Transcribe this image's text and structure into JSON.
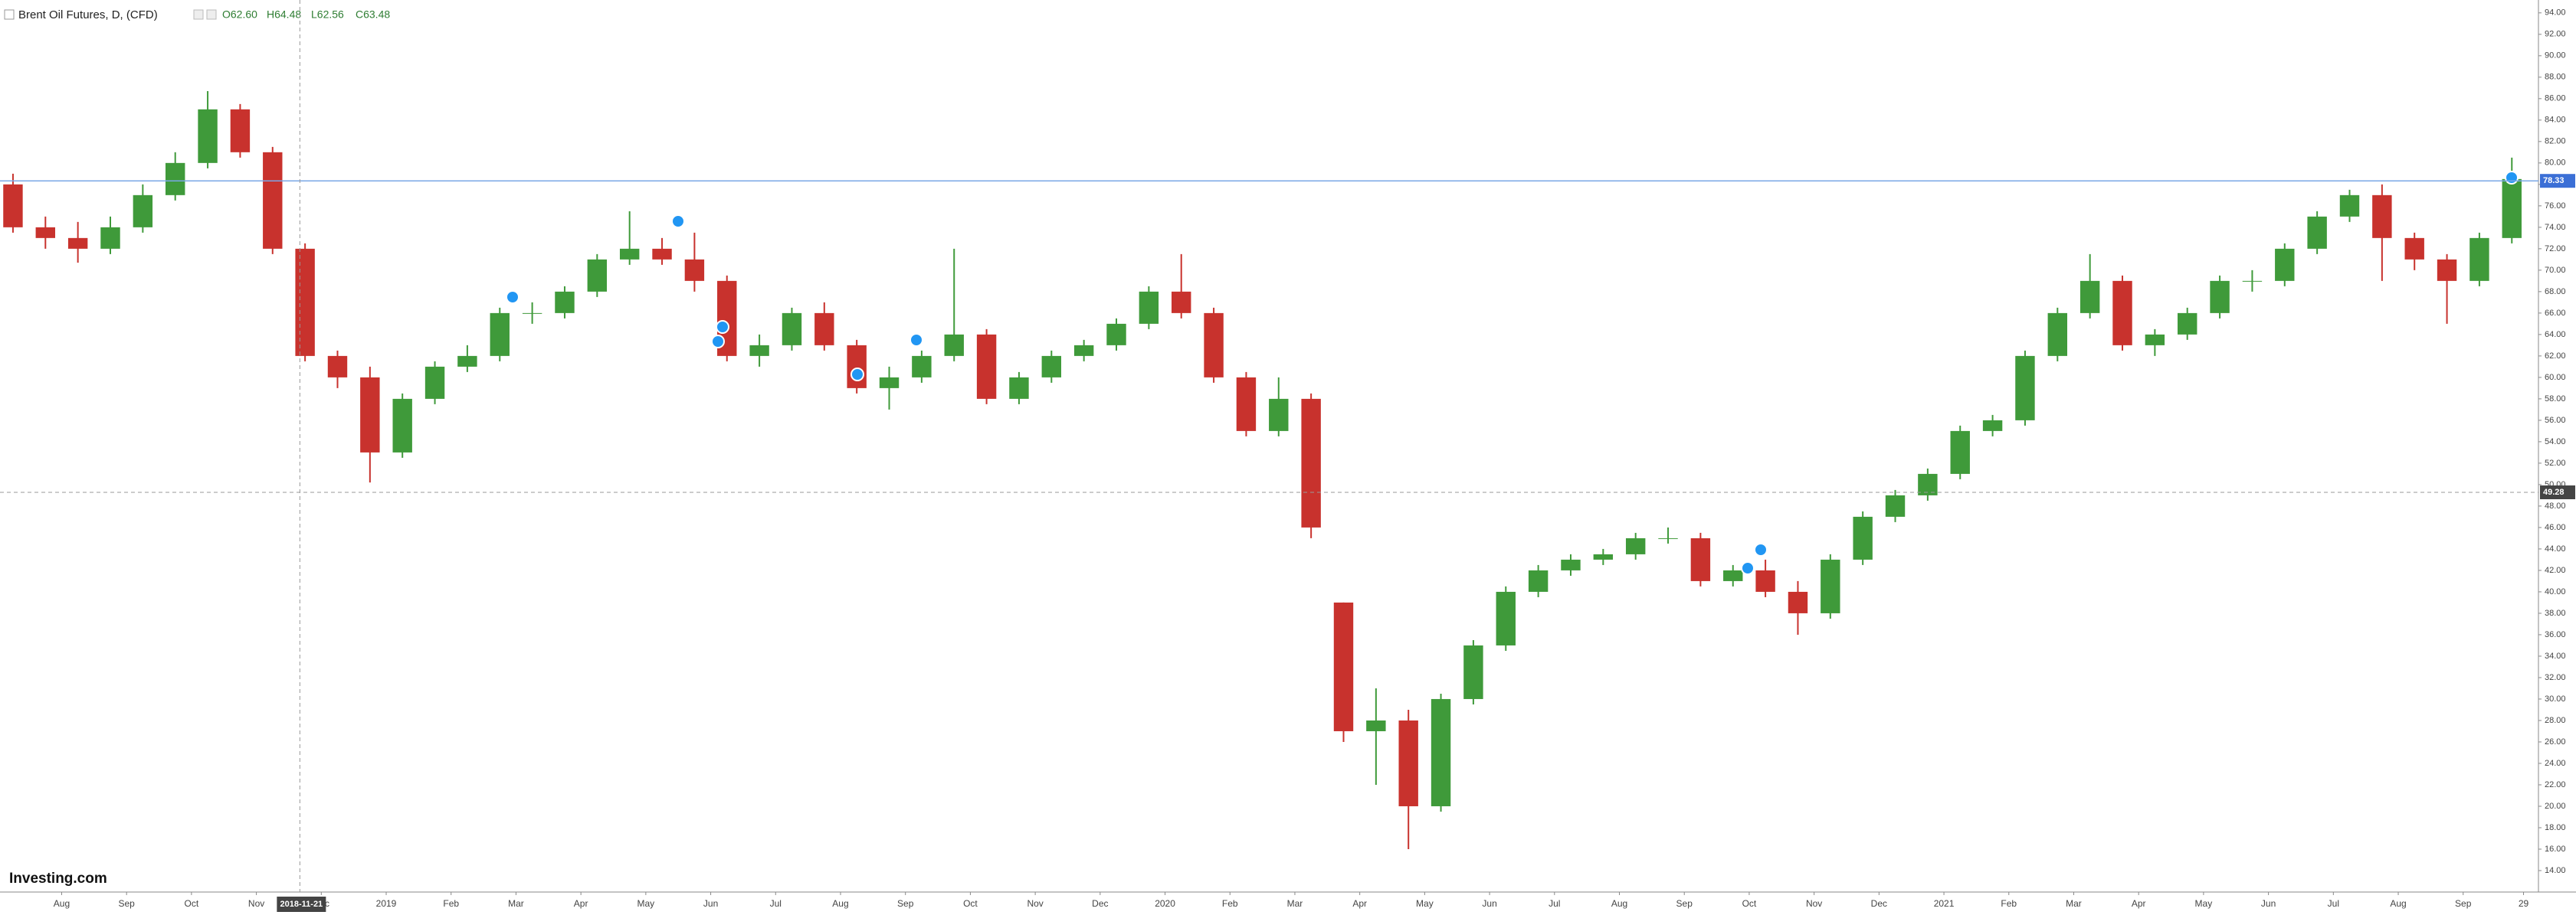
{
  "chart_data": {
    "type": "candlestick",
    "title": "Brent Oil Futures, D, (CFD)",
    "ohlc_legend": [
      "O62.60",
      "H64.48",
      "L62.56",
      "C63.48"
    ],
    "brand": "Investing.com",
    "up_color": "#3f9a3a",
    "down_color": "#c8322d",
    "x": [
      0.25,
      0.75,
      1.25,
      1.75,
      2.25,
      2.75,
      3.25,
      3.75,
      4.25,
      4.75,
      5.25,
      5.75,
      6.25,
      6.75,
      7.25,
      7.75,
      8.25,
      8.75,
      9.25,
      9.75,
      10.25,
      10.75,
      11.25,
      11.75,
      12.25,
      12.75,
      13.25,
      13.75,
      14.25,
      14.75,
      15.25,
      15.75,
      16.25,
      16.75,
      17.25,
      17.75,
      18.25,
      18.75,
      19.25,
      19.75,
      20.25,
      20.75,
      21.25,
      21.75,
      22.25,
      22.75,
      23.25,
      23.75,
      24.25,
      24.75,
      25.25,
      25.75,
      26.25,
      26.75,
      27.25,
      27.75,
      28.25,
      28.75,
      29.25,
      29.75,
      30.25,
      30.75,
      31.25,
      31.75,
      32.25,
      32.75,
      33.25,
      33.75,
      34.25,
      34.75,
      35.25,
      35.75,
      36.25,
      36.75,
      37.25,
      37.75,
      38.25,
      38.75
    ],
    "open": [
      78,
      74,
      73,
      72,
      74,
      77,
      80,
      85,
      81,
      72,
      62,
      60,
      53,
      58,
      61,
      62,
      66,
      66,
      68,
      71,
      72,
      71,
      69,
      62,
      63,
      66,
      63,
      59,
      60,
      62,
      64,
      58,
      60,
      62,
      63,
      65,
      68,
      66,
      60,
      55,
      58,
      39,
      27,
      28,
      20,
      30,
      35,
      40,
      42,
      43,
      43.5,
      45,
      45,
      41,
      42,
      40,
      38,
      43,
      47,
      49,
      51,
      55,
      56,
      62,
      66,
      69,
      63,
      64,
      66,
      69,
      69,
      72,
      75,
      77,
      73,
      71,
      69,
      73
    ],
    "high": [
      79,
      75,
      74.5,
      75,
      78,
      81,
      86.7,
      85.5,
      81.5,
      72.5,
      62.5,
      61,
      58.5,
      61.5,
      63,
      66.5,
      67,
      68.5,
      71.5,
      75.5,
      73,
      73.5,
      69.5,
      64,
      66.5,
      67,
      63.5,
      61,
      62.5,
      72,
      64.5,
      60.5,
      62.5,
      63.5,
      65.5,
      68.5,
      71.5,
      66.5,
      60.5,
      60,
      58.5,
      39,
      31,
      29,
      30.5,
      35.5,
      40.5,
      42.5,
      43.5,
      44,
      45.5,
      46,
      45.5,
      42.5,
      43,
      41,
      43.5,
      47.5,
      49.5,
      51.5,
      55.5,
      56.5,
      62.5,
      66.5,
      71.5,
      69.5,
      64.5,
      66.5,
      69.5,
      70,
      72.5,
      75.5,
      77.5,
      78,
      73.5,
      71.5,
      73.5,
      80.5
    ],
    "low": [
      73.5,
      72,
      70.7,
      71.5,
      73.5,
      76.5,
      79.5,
      80.5,
      71.5,
      61.5,
      59,
      50.2,
      52.5,
      57.5,
      60.5,
      61.5,
      65,
      65.5,
      67.5,
      70.5,
      70.5,
      68,
      61.5,
      61,
      62.5,
      62.5,
      58.5,
      57,
      59.5,
      61.5,
      57.5,
      57.5,
      59.5,
      61.5,
      62.5,
      64.5,
      65.5,
      59.5,
      54.5,
      54.5,
      45,
      26,
      22,
      16,
      19.5,
      29.5,
      34.5,
      39.5,
      41.5,
      42.5,
      43,
      44.5,
      40.5,
      40.5,
      39.5,
      36,
      37.5,
      42.5,
      46.5,
      48.5,
      50.5,
      54.5,
      55.5,
      61.5,
      65.5,
      62.5,
      62,
      63.5,
      65.5,
      68,
      68.5,
      71.5,
      74.5,
      69,
      70,
      65,
      68.5,
      72.5
    ],
    "close": [
      74,
      73,
      72,
      74,
      77,
      80,
      85,
      81,
      72,
      62,
      60,
      53,
      58,
      61,
      62,
      66,
      66,
      68,
      71,
      72,
      71,
      69,
      62,
      63,
      66,
      63,
      59,
      60,
      62,
      64,
      58,
      60,
      62,
      63,
      65,
      68,
      66,
      60,
      55,
      58,
      46,
      27,
      28,
      20,
      30,
      35,
      40,
      42,
      43,
      43.5,
      45,
      45,
      41,
      42,
      40,
      38,
      43,
      47,
      49,
      51,
      55,
      56,
      62,
      66,
      69,
      63,
      64,
      66,
      69,
      69,
      72,
      75,
      77,
      73,
      71,
      69,
      73,
      78.5
    ],
    "xlim": [
      0.05,
      39.16
    ],
    "xticks": [
      {
        "value": 1,
        "label": "Aug"
      },
      {
        "value": 2,
        "label": "Sep"
      },
      {
        "value": 3,
        "label": "Oct"
      },
      {
        "value": 4,
        "label": "Nov"
      },
      {
        "value": 5,
        "label": "Dec"
      },
      {
        "value": 6,
        "label": "2019"
      },
      {
        "value": 7,
        "label": "Feb"
      },
      {
        "value": 8,
        "label": "Mar"
      },
      {
        "value": 9,
        "label": "Apr"
      },
      {
        "value": 10,
        "label": "May"
      },
      {
        "value": 11,
        "label": "Jun"
      },
      {
        "value": 12,
        "label": "Jul"
      },
      {
        "value": 13,
        "label": "Aug"
      },
      {
        "value": 14,
        "label": "Sep"
      },
      {
        "value": 15,
        "label": "Oct"
      },
      {
        "value": 16,
        "label": "Nov"
      },
      {
        "value": 17,
        "label": "Dec"
      },
      {
        "value": 18,
        "label": "2020"
      },
      {
        "value": 19,
        "label": "Feb"
      },
      {
        "value": 20,
        "label": "Mar"
      },
      {
        "value": 21,
        "label": "Apr"
      },
      {
        "value": 22,
        "label": "May"
      },
      {
        "value": 23,
        "label": "Jun"
      },
      {
        "value": 24,
        "label": "Jul"
      },
      {
        "value": 25,
        "label": "Aug"
      },
      {
        "value": 26,
        "label": "Sep"
      },
      {
        "value": 27,
        "label": "Oct"
      },
      {
        "value": 28,
        "label": "Nov"
      },
      {
        "value": 29,
        "label": "Dec"
      },
      {
        "value": 30,
        "label": "2021"
      },
      {
        "value": 31,
        "label": "Feb"
      },
      {
        "value": 32,
        "label": "Mar"
      },
      {
        "value": 33,
        "label": "Apr"
      },
      {
        "value": 34,
        "label": "May"
      },
      {
        "value": 35,
        "label": "Jun"
      },
      {
        "value": 36,
        "label": "Jul"
      },
      {
        "value": 37,
        "label": "Aug"
      },
      {
        "value": 38,
        "label": "Sep"
      },
      {
        "value": 38.93,
        "label": "29"
      }
    ],
    "ylim": [
      12,
      95.2
    ],
    "yticks": [
      {
        "value": 14,
        "label": "14.00"
      },
      {
        "value": 16,
        "label": "16.00"
      },
      {
        "value": 18,
        "label": "18.00"
      },
      {
        "value": 20,
        "label": "20.00"
      },
      {
        "value": 22,
        "label": "22.00"
      },
      {
        "value": 24,
        "label": "24.00"
      },
      {
        "value": 26,
        "label": "26.00"
      },
      {
        "value": 28,
        "label": "28.00"
      },
      {
        "value": 30,
        "label": "30.00"
      },
      {
        "value": 32,
        "label": "32.00"
      },
      {
        "value": 34,
        "label": "34.00"
      },
      {
        "value": 36,
        "label": "36.00"
      },
      {
        "value": 38,
        "label": "38.00"
      },
      {
        "value": 40,
        "label": "40.00"
      },
      {
        "value": 42,
        "label": "42.00"
      },
      {
        "value": 44,
        "label": "44.00"
      },
      {
        "value": 46,
        "label": "46.00"
      },
      {
        "value": 48,
        "label": "48.00"
      },
      {
        "value": 50,
        "label": "50.00"
      },
      {
        "value": 52,
        "label": "52.00"
      },
      {
        "value": 54,
        "label": "54.00"
      },
      {
        "value": 56,
        "label": "56.00"
      },
      {
        "value": 58,
        "label": "58.00"
      },
      {
        "value": 60,
        "label": "60.00"
      },
      {
        "value": 62,
        "label": "62.00"
      },
      {
        "value": 64,
        "label": "64.00"
      },
      {
        "value": 66,
        "label": "66.00"
      },
      {
        "value": 68,
        "label": "68.00"
      },
      {
        "value": 70,
        "label": "70.00"
      },
      {
        "value": 72,
        "label": "72.00"
      },
      {
        "value": 74,
        "label": "74.00"
      },
      {
        "value": 76,
        "label": "76.00"
      },
      {
        "value": 78,
        "label": "78.00"
      },
      {
        "value": 80,
        "label": "80.00"
      },
      {
        "value": 82,
        "label": "82.00"
      },
      {
        "value": 84,
        "label": "84.00"
      },
      {
        "value": 86,
        "label": "86.00"
      },
      {
        "value": 88,
        "label": "88.00"
      },
      {
        "value": 90,
        "label": "90.00"
      },
      {
        "value": 92,
        "label": "92.00"
      },
      {
        "value": 94,
        "label": "94.00"
      }
    ],
    "grid": false,
    "price_line": 78.33,
    "crosshair_x": {
      "value": 4.67,
      "label": "2018-11-21"
    },
    "crosshair_y": 49.28
  }
}
